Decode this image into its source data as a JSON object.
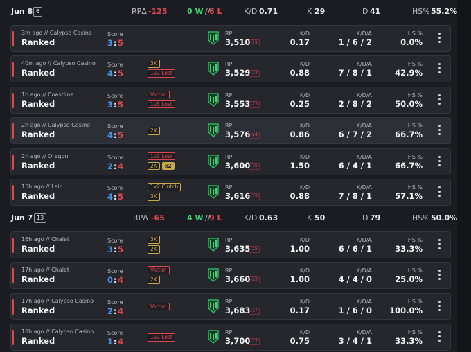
{
  "labels": {
    "score": "Score",
    "colon": ":",
    "rp": "RP",
    "kd": "K/D",
    "kda": "K/D/A",
    "hs": "HS %"
  },
  "days": [
    {
      "date": "Jun 8",
      "count": "6",
      "rp_label": "RPΔ",
      "rp": "-125",
      "wins": "0 W",
      "sep": "//",
      "losses": "6 L",
      "kd_label": "K/D",
      "kd": "0.71",
      "k_label": "K",
      "k": "29",
      "d_label": "D",
      "d": "41",
      "hs_label": "HS%",
      "hs": "55.2%",
      "matches": [
        {
          "when": "3m ago // Calypso Casino",
          "mode": "Ranked",
          "own": "3",
          "opp": "5",
          "badges": [],
          "rp": "3,510",
          "delta": "-19",
          "kd": "0.17",
          "kda": "1 / 6 / 2",
          "hs": "0.0%"
        },
        {
          "when": "40m ago // Calypso Casino",
          "mode": "Ranked",
          "own": "4",
          "opp": "5",
          "badges": [
            [
              {
                "text": "3K",
                "color": "#c9a94a"
              }
            ],
            [
              {
                "text": "1v2 Lost",
                "color": "#e0474c"
              }
            ]
          ],
          "rp": "3,529",
          "delta": "-24",
          "kd": "0.88",
          "kda": "7 / 8 / 1",
          "hs": "42.9%"
        },
        {
          "when": "1h ago // Coastline",
          "mode": "Ranked",
          "own": "3",
          "opp": "5",
          "badges": [
            [
              {
                "text": "Victim",
                "color": "#e0474c"
              }
            ],
            [
              {
                "text": "1v3 Lost",
                "color": "#e0474c"
              }
            ]
          ],
          "rp": "3,553",
          "delta": "-23",
          "kd": "0.25",
          "kda": "2 / 8 / 2",
          "hs": "50.0%"
        },
        {
          "when": "2h ago // Calypso Casino",
          "mode": "Ranked",
          "own": "4",
          "opp": "5",
          "badges": [
            [
              {
                "text": "2K",
                "color": "#c9a94a"
              }
            ]
          ],
          "rp": "3,576",
          "delta": "-24",
          "kd": "0.86",
          "kda": "6 / 7 / 2",
          "hs": "66.7%",
          "highlight": true
        },
        {
          "when": "2h ago // Oregon",
          "mode": "Ranked",
          "own": "2",
          "opp": "4",
          "badges": [
            [
              {
                "text": "1v2 Lost",
                "color": "#e0474c"
              }
            ],
            [
              {
                "text": "2K",
                "color": "#c9a94a"
              },
              {
                "text": "x2",
                "color": "#c9a94a",
                "filled": true
              }
            ]
          ],
          "rp": "3,600",
          "delta": "-16",
          "kd": "1.50",
          "kda": "6 / 4 / 1",
          "hs": "66.7%"
        },
        {
          "when": "15h ago // Lair",
          "mode": "Ranked",
          "own": "4",
          "opp": "5",
          "badges": [
            [
              {
                "text": "1v2 Clutch",
                "color": "#c9a94a"
              }
            ],
            [
              {
                "text": "3K",
                "color": "#c9a94a"
              }
            ]
          ],
          "rp": "3,616",
          "delta": "-19",
          "kd": "0.88",
          "kda": "7 / 8 / 1",
          "hs": "57.1%"
        }
      ]
    },
    {
      "date": "Jun 7",
      "count": "13",
      "rp_label": "RPΔ",
      "rp": "-65",
      "wins": "4 W",
      "sep": "//",
      "losses": "9 L",
      "kd_label": "K/D",
      "kd": "0.63",
      "k_label": "K",
      "k": "50",
      "d_label": "D",
      "d": "79",
      "hs_label": "HS%",
      "hs": "50.0%",
      "matches": [
        {
          "when": "16h ago // Chalet",
          "mode": "Ranked",
          "own": "3",
          "opp": "5",
          "badges": [
            [
              {
                "text": "3K",
                "color": "#c9a94a"
              }
            ],
            [
              {
                "text": "2K",
                "color": "#c9a94a"
              }
            ]
          ],
          "rp": "3,635",
          "delta": "-25",
          "kd": "1.00",
          "kda": "6 / 6 / 1",
          "hs": "33.3%"
        },
        {
          "when": "17h ago // Chalet",
          "mode": "Ranked",
          "own": "0",
          "opp": "4",
          "badges": [
            [
              {
                "text": "Victim",
                "color": "#e0474c"
              }
            ],
            [
              {
                "text": "2K",
                "color": "#c9a94a"
              }
            ]
          ],
          "rp": "3,660",
          "delta": "-23",
          "kd": "1.00",
          "kda": "4 / 4 / 0",
          "hs": "25.0%"
        },
        {
          "when": "17h ago // Calypso Casino",
          "mode": "Ranked",
          "own": "2",
          "opp": "4",
          "badges": [
            [
              {
                "text": "Victim",
                "color": "#e0474c"
              }
            ]
          ],
          "rp": "3,683",
          "delta": "-17",
          "kd": "0.17",
          "kda": "1 / 6 / 0",
          "hs": "100.0%"
        },
        {
          "when": "18h ago // Calypso Casino",
          "mode": "Ranked",
          "own": "1",
          "opp": "4",
          "badges": [
            [
              {
                "text": "1v2 Lost",
                "color": "#e0474c"
              }
            ]
          ],
          "rp": "3,700",
          "delta": "-17",
          "kd": "0.75",
          "kda": "3 / 4 / 1",
          "hs": "33.3%"
        }
      ]
    }
  ]
}
